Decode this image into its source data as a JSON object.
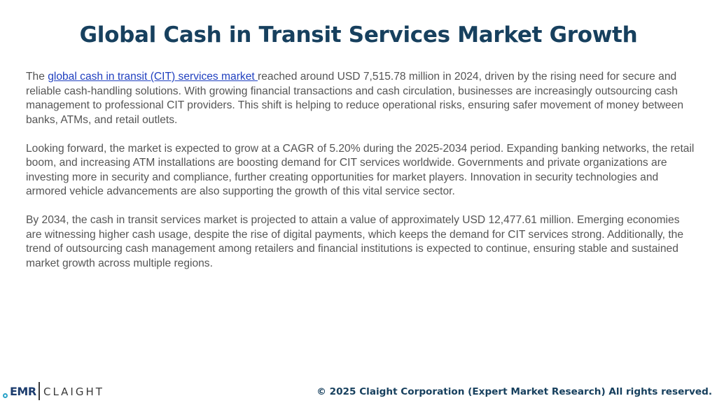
{
  "title": "Global Cash in Transit Services Market Growth",
  "paragraphs": {
    "p1_prefix": "The ",
    "p1_link": "global cash in transit (CIT) services market ",
    "p1_rest": "reached around USD 7,515.78 million in 2024, driven by the rising need for secure and reliable cash-handling solutions. With growing financial transactions and cash circulation, businesses are increasingly outsourcing cash management to professional CIT providers. This shift is helping to reduce operational risks, ensuring safer movement of money between banks, ATMs, and retail outlets.",
    "p2": "Looking forward, the market is expected to grow at a CAGR of 5.20% during the 2025-2034 period. Expanding banking networks, the retail boom, and increasing ATM installations are boosting demand for CIT services worldwide. Governments and private organizations are investing more in security and compliance, further creating opportunities for market players. Innovation in security technologies and armored vehicle advancements are also supporting the growth of this vital service sector.",
    "p3": "By 2034, the cash in transit services market is projected to attain a value of approximately USD 12,477.61 million. Emerging economies are witnessing higher cash usage, despite the rise of digital payments, which keeps the demand for CIT services strong. Additionally, the trend of outsourcing cash management among retailers and financial institutions is expected to continue, ensuring stable and sustained market growth across multiple regions."
  },
  "logo": {
    "left": "EMR",
    "right": "CLAIGHT"
  },
  "footer": "© 2025 Claight Corporation (Expert Market Research) All rights reserved.",
  "colors": {
    "title": "#17405e",
    "body_text": "#555555",
    "link": "#1f3fbf",
    "logo_accent": "#2aa3c9"
  }
}
